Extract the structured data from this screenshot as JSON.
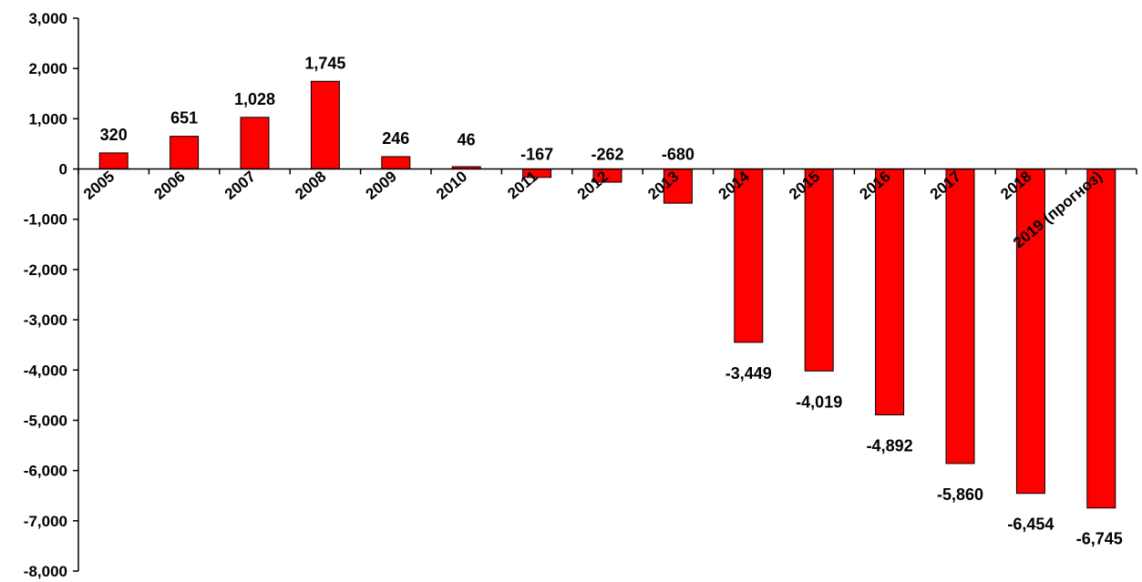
{
  "chart_data": {
    "type": "bar",
    "categories": [
      "2005",
      "2006",
      "2007",
      "2008",
      "2009",
      "2010",
      "2011",
      "2012",
      "2013",
      "2014",
      "2015",
      "2016",
      "2017",
      "2018",
      "2019 (прогноз)"
    ],
    "values": [
      320,
      651,
      1028,
      1745,
      246,
      46,
      -167,
      -262,
      -680,
      -3449,
      -4019,
      -4892,
      -5860,
      -6454,
      -6745
    ],
    "data_labels": [
      "320",
      "651",
      "1,028",
      "1,745",
      "246",
      "46",
      "-167",
      "-262",
      "-680",
      "-3,449",
      "-4,019",
      "-4,892",
      "-5,860",
      "-6,454",
      "-6,745"
    ],
    "y_ticks": [
      3000,
      2000,
      1000,
      0,
      -1000,
      -2000,
      -3000,
      -4000,
      -5000,
      -6000,
      -7000,
      -8000
    ],
    "y_tick_labels": [
      "3,000",
      "2,000",
      "1,000",
      "0",
      "-1,000",
      "-2,000",
      "-3,000",
      "-4,000",
      "-5,000",
      "-6,000",
      "-7,000",
      "-8,000"
    ],
    "ylim": [
      -8000,
      3000
    ],
    "title": "",
    "xlabel": "",
    "ylabel": "",
    "grid": false,
    "bar_color": "#ff0000",
    "bar_edge_color": "#000000"
  }
}
